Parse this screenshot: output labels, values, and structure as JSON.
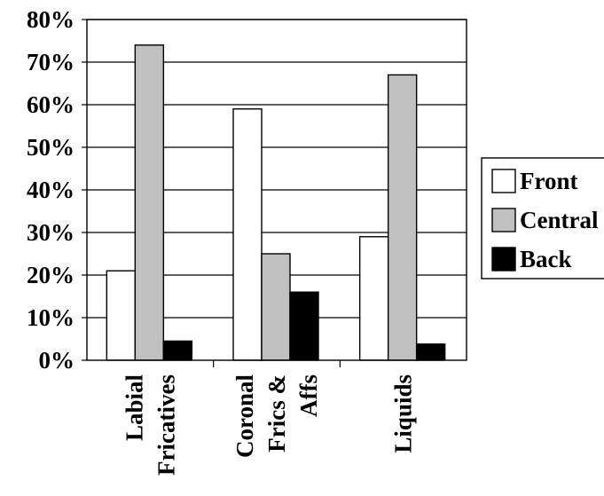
{
  "chart_data": {
    "type": "bar",
    "categories": [
      [
        "Labial",
        "Fricatives"
      ],
      [
        "Coronal",
        "Frics &",
        "Affs"
      ],
      [
        "Liquids"
      ]
    ],
    "series": [
      {
        "name": "Front",
        "color": "#ffffff",
        "values": [
          21,
          59,
          29
        ]
      },
      {
        "name": "Central",
        "color": "#c0c0c0",
        "values": [
          74,
          25,
          67
        ]
      },
      {
        "name": "Back",
        "color": "#000000",
        "values": [
          4.5,
          16,
          3.8
        ]
      }
    ],
    "yticks": [
      "0%",
      "10%",
      "20%",
      "30%",
      "40%",
      "50%",
      "60%",
      "70%",
      "80%"
    ],
    "ylim": [
      0,
      80
    ],
    "grid": true,
    "legend": "right"
  }
}
